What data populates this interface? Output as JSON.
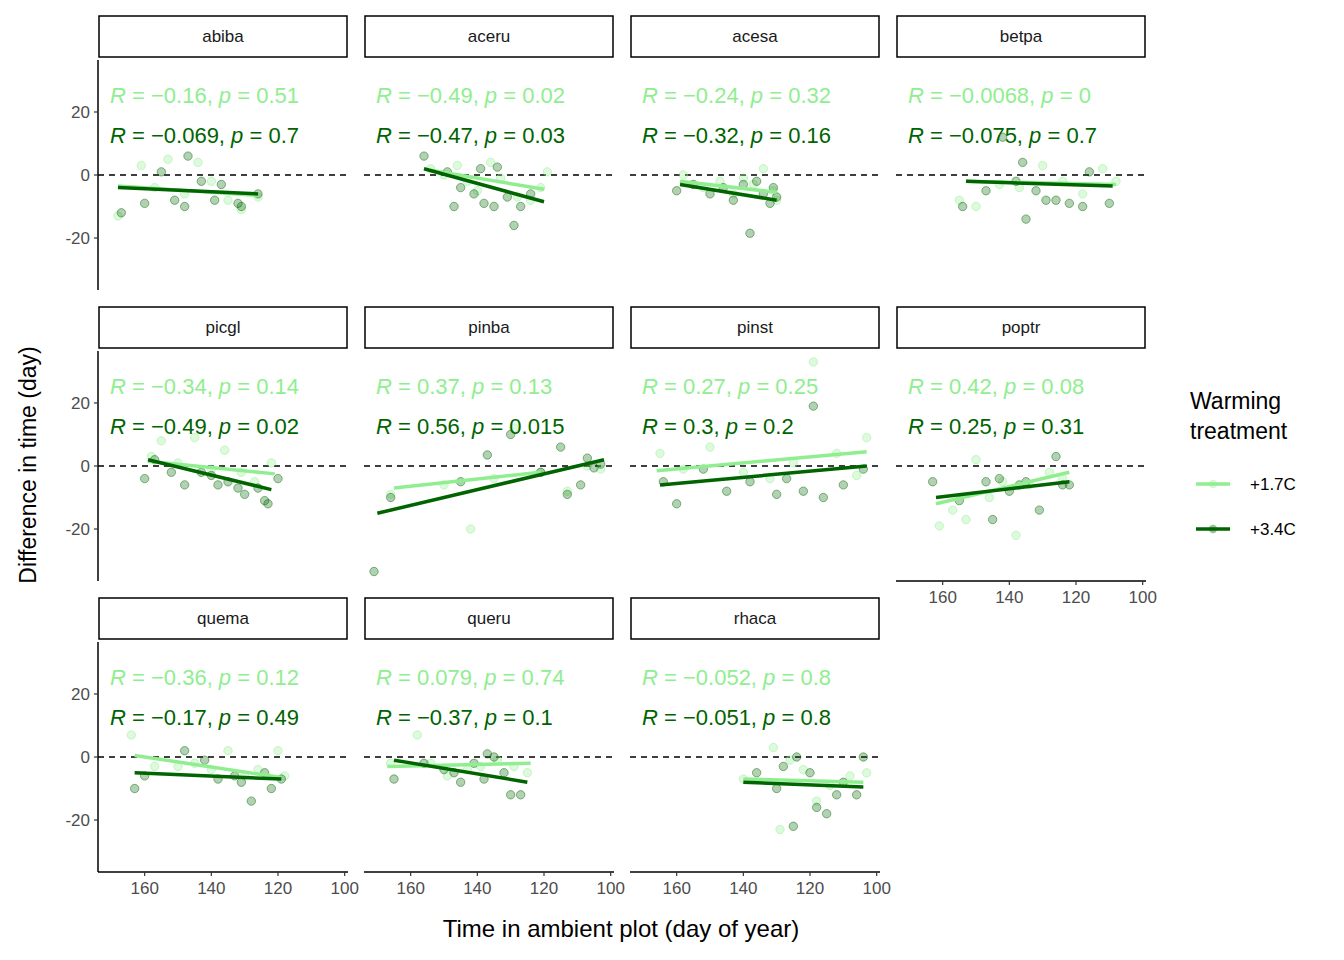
{
  "chart_data": {
    "type": "scatter",
    "x_label": "Time in ambient plot (day of year)",
    "y_label": "Difference in time (day)",
    "legend_title": "Warming treatment",
    "legend": "right",
    "xlim": [
      174,
      99
    ],
    "ylim": [
      -36.5,
      36.5
    ],
    "xticks": [
      160,
      140,
      120,
      100
    ],
    "yticks": [
      -20,
      0,
      20
    ],
    "hline": 0,
    "series": [
      {
        "name": "+1.7C",
        "color": "#90EE90"
      },
      {
        "name": "+3.4C",
        "color": "#006400"
      }
    ],
    "panels": [
      {
        "title": "abiba",
        "groups": [
          {
            "label": "R = −0.16, p = 0.51",
            "x": [
              168,
              161,
              157,
              153,
              148,
              144,
              140,
              135,
              131,
              126
            ],
            "values": [
              -13,
              3,
              -4,
              5,
              -6,
              4,
              -2,
              -8,
              -11,
              -7
            ],
            "trend_x": [
              168,
              126
            ],
            "trend_y": [
              -3.5,
              -6.5
            ]
          },
          {
            "label": "R = −0.069, p = 0.7",
            "x": [
              167,
              160,
              155,
              151,
              148,
              147,
              143,
              139,
              137,
              132,
              131,
              126
            ],
            "values": [
              -12,
              -9,
              1,
              -8,
              -10,
              6,
              -2,
              -8,
              -3,
              -9,
              -10,
              -6
            ],
            "trend_x": [
              168,
              126
            ],
            "trend_y": [
              -4,
              -6
            ]
          }
        ]
      },
      {
        "title": "aceru",
        "groups": [
          {
            "label": "R = −0.49, p = 0.02",
            "x": [
              154,
              150,
              146,
              143,
              140,
              136,
              133,
              128,
              124,
              121,
              119
            ],
            "values": [
              2,
              0,
              3,
              -2,
              -5,
              4,
              -1,
              -7,
              -8,
              -4,
              1
            ],
            "trend_x": [
              154,
              120
            ],
            "trend_y": [
              1.5,
              -4.5
            ]
          },
          {
            "label": "R = −0.47, p = 0.03",
            "x": [
              156,
              149,
              147,
              145,
              141,
              139,
              138,
              135,
              134,
              131,
              129,
              127,
              124
            ],
            "values": [
              6,
              1,
              -10,
              -4,
              -6,
              2,
              -9,
              -10,
              2.5,
              -7,
              -16,
              -10,
              -6
            ],
            "trend_x": [
              156,
              120
            ],
            "trend_y": [
              2,
              -8.5
            ]
          }
        ]
      },
      {
        "title": "acesa",
        "groups": [
          {
            "label": "R = −0.24, p = 0.32",
            "x": [
              158,
              152,
              147,
              143,
              140,
              137,
              134,
              131,
              130
            ],
            "values": [
              0,
              -4,
              -2,
              -6,
              -1,
              -3,
              2,
              -5,
              -8
            ],
            "trend_x": [
              159,
              130
            ],
            "trend_y": [
              -2,
              -5.5
            ]
          },
          {
            "label": "R = −0.32, p = 0.16",
            "x": [
              160,
              155,
              150,
              146,
              143,
              140,
              138,
              136,
              134,
              132,
              131,
              130
            ],
            "values": [
              -5,
              -3,
              -6,
              -4,
              -8,
              -3,
              -18.5,
              -2,
              -6,
              -9,
              -4,
              -7
            ],
            "trend_x": [
              159,
              130
            ],
            "trend_y": [
              -3,
              -8
            ]
          }
        ]
      },
      {
        "title": "betpa",
        "groups": [
          {
            "label": "R = −0.0068, p = 0",
            "x": [
              155,
              150,
              143,
              137,
              130,
              124,
              118,
              112,
              108
            ],
            "values": [
              -8,
              -10,
              -3,
              -4,
              3,
              -2,
              -6,
              2,
              -2
            ],
            "trend_x": [
              153,
              108
            ],
            "trend_y": [
              -2,
              -3
            ]
          },
          {
            "label": "R = −0.075, p = 0.7",
            "x": [
              154,
              147,
              142,
              138,
              136,
              135,
              132,
              129,
              126,
              122,
              118,
              116,
              110
            ],
            "values": [
              -10,
              -5,
              12,
              -2,
              4,
              -14,
              -5,
              -8,
              -8,
              -9,
              -10,
              1,
              -9
            ],
            "trend_x": [
              153,
              109
            ],
            "trend_y": [
              -2,
              -3.5
            ]
          }
        ]
      },
      {
        "title": "picgl",
        "groups": [
          {
            "label": "R = −0.34, p = 0.14",
            "x": [
              158,
              155,
              150,
              145,
              140,
              136,
              131,
              127,
              122
            ],
            "values": [
              3,
              8,
              1,
              9,
              -1,
              5,
              -2,
              -5,
              1
            ],
            "trend_x": [
              159,
              121
            ],
            "trend_y": [
              1.5,
              -2.5
            ]
          },
          {
            "label": "R = −0.49, p = 0.02",
            "x": [
              160,
              157,
              152,
              148,
              143,
              140,
              138,
              135,
              132,
              130,
              126,
              124,
              123,
              120
            ],
            "values": [
              -4,
              2,
              -2,
              -6,
              -2,
              -3,
              -6,
              -5,
              -7,
              -9,
              -7,
              -11,
              -12,
              -4
            ],
            "trend_x": [
              159,
              122
            ],
            "trend_y": [
              2,
              -7.5
            ]
          }
        ]
      },
      {
        "title": "pinba",
        "groups": [
          {
            "label": "R = 0.37, p = 0.13",
            "x": [
              166,
              150,
              142,
              135,
              129,
              121,
              113,
              107,
              103
            ],
            "values": [
              -9,
              -6,
              -20,
              -4,
              12,
              -2,
              -8,
              0,
              -1
            ],
            "trend_x": [
              165,
              121
            ],
            "trend_y": [
              -7,
              -2
            ]
          },
          {
            "label": "R = 0.56, p = 0.015",
            "x": [
              171,
              166,
              145,
              137,
              130,
              121,
              115,
              113,
              109,
              107,
              105,
              103
            ],
            "values": [
              -33.5,
              -10,
              -5,
              3.5,
              10,
              -2,
              6,
              -9,
              -6,
              2.5,
              -0.6,
              0.6
            ],
            "trend_x": [
              170,
              102
            ],
            "trend_y": [
              -15,
              2
            ]
          }
        ]
      },
      {
        "title": "pinst",
        "groups": [
          {
            "label": "R = 0.27, p = 0.25",
            "x": [
              165,
              158,
              150,
              140,
              132,
              125,
              119,
              112,
              106,
              103
            ],
            "values": [
              4,
              -1,
              6,
              -2,
              -4,
              1,
              33,
              4,
              -3,
              9
            ],
            "trend_x": [
              166,
              103
            ],
            "trend_y": [
              -1.5,
              4.5
            ]
          },
          {
            "label": "R = 0.3, p = 0.2",
            "x": [
              164,
              160,
              152,
              145,
              138,
              130,
              127,
              122,
              116,
              119,
              110,
              104
            ],
            "values": [
              -5,
              -12,
              -1,
              -8,
              -5,
              -9,
              -4,
              -8,
              -10,
              19,
              -6,
              -1
            ],
            "trend_x": [
              165,
              103
            ],
            "trend_y": [
              -6,
              0
            ]
          }
        ]
      },
      {
        "title": "poptr",
        "groups": [
          {
            "label": "R = 0.42, p = 0.08",
            "x": [
              161,
              157,
              153,
              150,
              146,
              142,
              138,
              134,
              128,
              124
            ],
            "values": [
              -19,
              -14,
              -17,
              2,
              -10,
              -5,
              -22,
              -6,
              -2,
              -4
            ],
            "trend_x": [
              162,
              122
            ],
            "trend_y": [
              -12,
              -2
            ]
          },
          {
            "label": "R = 0.25, p = 0.31",
            "x": [
              163,
              155,
              147,
              145,
              143,
              140,
              137,
              135,
              131,
              126,
              124,
              122
            ],
            "values": [
              -5,
              -11,
              -5,
              -17,
              -4,
              -8,
              -6,
              -5,
              -14,
              3,
              -6,
              -6
            ],
            "trend_x": [
              162,
              122
            ],
            "trend_y": [
              -10,
              -5
            ]
          }
        ]
      },
      {
        "title": "quema",
        "groups": [
          {
            "label": "R = −0.36, p = 0.12",
            "x": [
              164,
              157,
              150,
              145,
              140,
              135,
              130,
              126,
              120,
              118
            ],
            "values": [
              7,
              -3,
              -3,
              -2,
              -4,
              2,
              -6,
              -4,
              2,
              -6
            ],
            "trend_x": [
              163,
              119
            ],
            "trend_y": [
              0.5,
              -6.5
            ]
          },
          {
            "label": "R = −0.17, p = 0.49",
            "x": [
              163,
              160,
              148,
              142,
              138,
              133,
              131,
              128,
              124,
              122,
              119
            ],
            "values": [
              -10,
              -6,
              2,
              -1,
              -7,
              -6,
              -8,
              -14,
              -5,
              -10,
              -7
            ],
            "trend_x": [
              163,
              119
            ],
            "trend_y": [
              -5,
              -7
            ]
          }
        ]
      },
      {
        "title": "queru",
        "groups": [
          {
            "label": "R = 0.079, p = 0.74",
            "x": [
              166,
              158,
              154,
              149,
              143,
              139,
              134,
              129,
              125
            ],
            "values": [
              -2,
              7,
              -2,
              -6,
              -4,
              -3,
              -1,
              -3,
              -5
            ],
            "trend_x": [
              167,
              124
            ],
            "trend_y": [
              -3,
              -2
            ]
          },
          {
            "label": "R = −0.37, p = 0.1",
            "x": [
              165,
              156,
              150,
              147,
              145,
              141,
              138,
              137,
              135,
              132,
              130,
              127
            ],
            "values": [
              -7,
              -2,
              -4,
              -5,
              -8,
              -2,
              -7,
              1,
              0,
              -5,
              -12,
              -12
            ],
            "trend_x": [
              165,
              125
            ],
            "trend_y": [
              -1,
              -8
            ]
          }
        ]
      },
      {
        "title": "rhaca",
        "groups": [
          {
            "label": "R = −0.052, p = 0.8",
            "x": [
              140,
              131,
              129,
              126,
              122,
              118,
              114,
              108,
              103
            ],
            "values": [
              -7,
              3,
              -23,
              -1,
              -4,
              -14,
              -9,
              -6,
              -5
            ],
            "trend_x": [
              140,
              104
            ],
            "trend_y": [
              -7,
              -8
            ]
          },
          {
            "label": "R = −0.051, p = 0.8",
            "x": [
              136,
              130,
              128,
              125,
              124,
              120,
              118,
              115,
              112,
              110,
              106,
              104
            ],
            "values": [
              -5,
              -10,
              -3,
              -22,
              0,
              -5,
              -16,
              -18,
              -12,
              -8,
              -12,
              0
            ],
            "trend_x": [
              140,
              104
            ],
            "trend_y": [
              -8,
              -9.5
            ]
          }
        ]
      }
    ]
  }
}
